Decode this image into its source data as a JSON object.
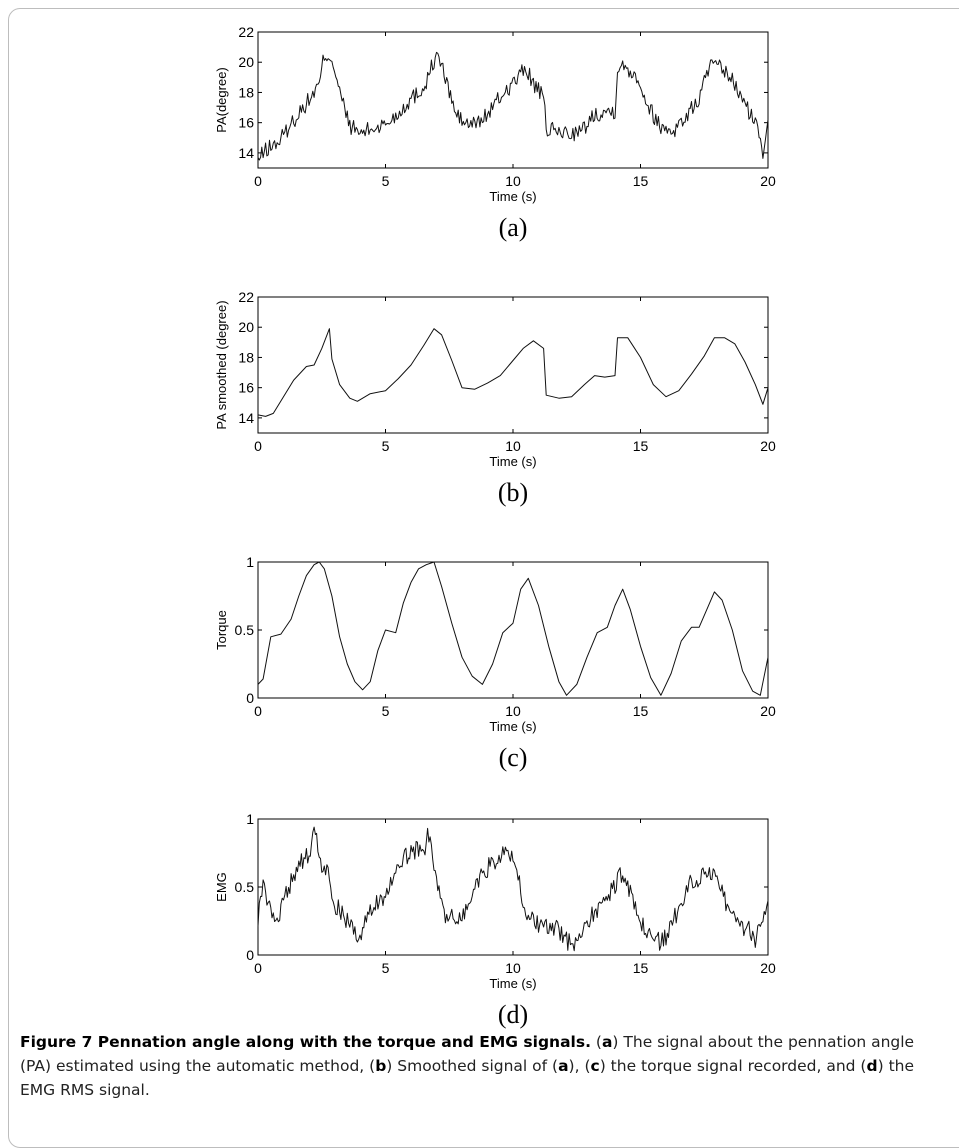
{
  "figure_caption": {
    "title": "Figure 7 Pennation angle along with the torque and EMG signals.",
    "segments": [
      {
        "text": " (",
        "bold": false
      },
      {
        "text": "a",
        "bold": true
      },
      {
        "text": ") The signal about the pennation angle (PA) estimated using the automatic method, (",
        "bold": false
      },
      {
        "text": "b",
        "bold": true
      },
      {
        "text": ") Smoothed signal of (",
        "bold": false
      },
      {
        "text": "a",
        "bold": true
      },
      {
        "text": "), (",
        "bold": false
      },
      {
        "text": "c",
        "bold": true
      },
      {
        "text": ") the torque signal recorded, and (",
        "bold": false
      },
      {
        "text": "d",
        "bold": true
      },
      {
        "text": ") the EMG RMS signal.",
        "bold": false
      }
    ]
  },
  "chart_data": [
    {
      "id": "a",
      "type": "line",
      "panel_label": "(a)",
      "title": "",
      "xlabel": "Time (s)",
      "ylabel": "PA(degree)",
      "xlim": [
        0,
        20
      ],
      "ylim": [
        13,
        22
      ],
      "xticks": [
        0,
        5,
        10,
        15,
        20
      ],
      "yticks": [
        14,
        16,
        18,
        20,
        22
      ],
      "grid": false,
      "noise": 0.55,
      "series": [
        {
          "x": [
            0,
            0.3,
            0.8,
            1.5,
            2.0,
            2.4,
            2.6,
            2.9,
            3.2,
            3.6,
            4.0,
            4.5,
            5.0,
            5.5,
            6.0,
            6.5,
            6.9,
            7.1,
            7.4,
            7.8,
            8.3,
            8.8,
            9.2,
            9.6,
            10.1,
            10.5,
            10.8,
            11.2,
            11.3,
            11.7,
            12.2,
            12.7,
            13.2,
            13.8,
            14.0,
            14.1,
            14.5,
            14.9,
            15.3,
            15.8,
            16.3,
            16.8,
            17.3,
            17.7,
            18.1,
            18.5,
            18.9,
            19.3,
            19.6,
            19.8,
            20.0
          ],
          "y": [
            13.5,
            14.2,
            14.7,
            16.4,
            17.5,
            18.5,
            20.5,
            20.3,
            18.0,
            15.8,
            15.3,
            15.6,
            15.9,
            16.6,
            17.6,
            18.3,
            20.1,
            20.4,
            18.6,
            16.4,
            15.8,
            16.2,
            17.0,
            17.9,
            18.8,
            19.6,
            18.6,
            17.6,
            15.6,
            15.4,
            15.3,
            15.4,
            16.6,
            16.8,
            16.8,
            19.7,
            19.6,
            19.0,
            17.1,
            15.7,
            15.5,
            16.4,
            17.6,
            19.8,
            19.6,
            19.1,
            17.8,
            16.6,
            15.6,
            14.0,
            16.2
          ]
        }
      ]
    },
    {
      "id": "b",
      "type": "line",
      "panel_label": "(b)",
      "title": "",
      "xlabel": "Time (s)",
      "ylabel": "PA smoothed (degree)",
      "xlim": [
        0,
        20
      ],
      "ylim": [
        13,
        22
      ],
      "xticks": [
        0,
        5,
        10,
        15,
        20
      ],
      "yticks": [
        14,
        16,
        18,
        20,
        22
      ],
      "grid": false,
      "noise": 0,
      "series": [
        {
          "x": [
            0,
            0.3,
            0.6,
            1.0,
            1.4,
            1.9,
            2.2,
            2.5,
            2.8,
            2.9,
            3.2,
            3.6,
            3.9,
            4.4,
            5.0,
            5.5,
            6.0,
            6.5,
            6.9,
            7.2,
            7.6,
            8.0,
            8.5,
            9.0,
            9.5,
            10.0,
            10.4,
            10.8,
            11.2,
            11.3,
            11.8,
            12.3,
            12.8,
            13.2,
            13.6,
            14.0,
            14.1,
            14.5,
            15.0,
            15.5,
            16.0,
            16.5,
            17.0,
            17.5,
            17.9,
            18.3,
            18.7,
            19.1,
            19.5,
            19.8,
            20.0
          ],
          "y": [
            14.2,
            14.1,
            14.3,
            15.4,
            16.5,
            17.4,
            17.5,
            18.6,
            19.9,
            17.9,
            16.2,
            15.3,
            15.1,
            15.6,
            15.8,
            16.6,
            17.5,
            18.8,
            19.9,
            19.5,
            17.8,
            16.0,
            15.9,
            16.3,
            16.8,
            17.8,
            18.6,
            19.1,
            18.6,
            15.5,
            15.3,
            15.4,
            16.2,
            16.8,
            16.7,
            16.8,
            19.3,
            19.3,
            18.0,
            16.2,
            15.4,
            15.8,
            16.9,
            18.1,
            19.3,
            19.3,
            18.9,
            17.7,
            16.2,
            14.9,
            16.0
          ]
        }
      ]
    },
    {
      "id": "c",
      "type": "line",
      "panel_label": "(c)",
      "title": "",
      "xlabel": "Time (s)",
      "ylabel": "Torque",
      "xlim": [
        0,
        20
      ],
      "ylim": [
        0,
        1
      ],
      "xticks": [
        0,
        5,
        10,
        15,
        20
      ],
      "yticks": [
        0,
        0.5,
        1
      ],
      "grid": false,
      "noise": 0,
      "series": [
        {
          "x": [
            0,
            0.2,
            0.5,
            0.9,
            1.3,
            1.6,
            1.9,
            2.2,
            2.4,
            2.6,
            2.9,
            3.2,
            3.5,
            3.8,
            4.1,
            4.4,
            4.7,
            5.0,
            5.4,
            5.7,
            6.0,
            6.3,
            6.6,
            6.9,
            7.2,
            7.6,
            8.0,
            8.4,
            8.8,
            9.2,
            9.6,
            10.0,
            10.3,
            10.6,
            11.0,
            11.4,
            11.8,
            12.1,
            12.5,
            12.9,
            13.3,
            13.7,
            14.0,
            14.3,
            14.6,
            15.0,
            15.4,
            15.8,
            16.2,
            16.6,
            17.0,
            17.3,
            17.6,
            17.9,
            18.2,
            18.6,
            19.0,
            19.4,
            19.7,
            20.0
          ],
          "y": [
            0.1,
            0.14,
            0.45,
            0.47,
            0.58,
            0.75,
            0.9,
            0.98,
            1.0,
            0.95,
            0.75,
            0.45,
            0.25,
            0.12,
            0.06,
            0.12,
            0.35,
            0.5,
            0.48,
            0.7,
            0.85,
            0.95,
            0.98,
            1.0,
            0.82,
            0.55,
            0.3,
            0.16,
            0.1,
            0.25,
            0.48,
            0.55,
            0.8,
            0.88,
            0.68,
            0.38,
            0.12,
            0.02,
            0.1,
            0.3,
            0.48,
            0.52,
            0.68,
            0.8,
            0.65,
            0.38,
            0.15,
            0.02,
            0.18,
            0.42,
            0.52,
            0.52,
            0.65,
            0.78,
            0.72,
            0.5,
            0.2,
            0.05,
            0.02,
            0.3
          ]
        }
      ]
    },
    {
      "id": "d",
      "type": "line",
      "panel_label": "(d)",
      "title": "",
      "xlabel": "Time (s)",
      "ylabel": "EMG",
      "xlim": [
        0,
        20
      ],
      "ylim": [
        0,
        1
      ],
      "xticks": [
        0,
        5,
        10,
        15,
        20
      ],
      "yticks": [
        0,
        0.5,
        1
      ],
      "grid": false,
      "noise": 0.07,
      "series": [
        {
          "x": [
            0,
            0.2,
            0.5,
            0.9,
            1.3,
            1.7,
            2.0,
            2.2,
            2.4,
            2.7,
            3.0,
            3.4,
            3.7,
            4.0,
            4.3,
            4.7,
            5.0,
            5.4,
            5.8,
            6.2,
            6.5,
            6.7,
            7.0,
            7.3,
            7.7,
            8.1,
            8.5,
            8.9,
            9.3,
            9.7,
            10.0,
            10.3,
            10.6,
            11.0,
            11.4,
            11.8,
            12.1,
            12.5,
            12.9,
            13.3,
            13.7,
            14.0,
            14.3,
            14.6,
            15.0,
            15.4,
            15.8,
            16.2,
            16.6,
            17.0,
            17.4,
            17.8,
            18.1,
            18.4,
            18.8,
            19.2,
            19.5,
            19.8,
            20.0
          ],
          "y": [
            0.25,
            0.55,
            0.3,
            0.32,
            0.55,
            0.7,
            0.72,
            0.95,
            0.7,
            0.62,
            0.38,
            0.28,
            0.22,
            0.1,
            0.28,
            0.4,
            0.45,
            0.58,
            0.72,
            0.78,
            0.75,
            0.9,
            0.55,
            0.28,
            0.27,
            0.3,
            0.5,
            0.62,
            0.7,
            0.74,
            0.72,
            0.48,
            0.28,
            0.22,
            0.2,
            0.18,
            0.1,
            0.1,
            0.25,
            0.32,
            0.42,
            0.52,
            0.62,
            0.45,
            0.22,
            0.15,
            0.08,
            0.2,
            0.4,
            0.55,
            0.58,
            0.62,
            0.55,
            0.35,
            0.22,
            0.2,
            0.12,
            0.28,
            0.4
          ]
        }
      ]
    }
  ]
}
